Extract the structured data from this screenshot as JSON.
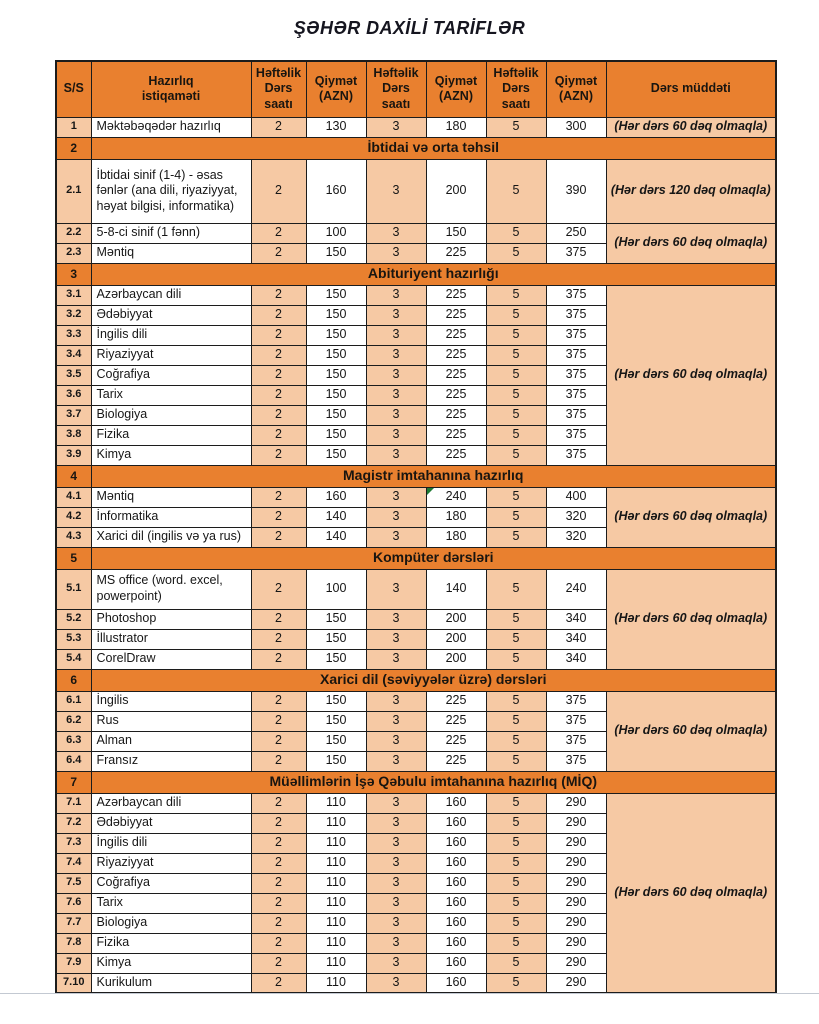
{
  "page": {
    "title": "ŞƏHƏR DAXİLİ TARİFLƏR"
  },
  "colors": {
    "header_orange": "#e9802f",
    "cell_peach": "#f6c9a4",
    "cell_white": "#ffffff",
    "border_black": "#1c1c1c",
    "error_flag_green": "#1e7b34"
  },
  "table": {
    "headers": [
      "S/S",
      "Hazırlıq\nistiqaməti",
      "Həftəlik\nDərs saatı",
      "Qiymət\n(AZN)",
      "Həftəlik\nDərs saatı",
      "Qiymət\n(AZN)",
      "Həftəlik\nDərs saatı",
      "Qiymət\n(AZN)",
      "Dərs müddəti"
    ],
    "rows": [
      {
        "type": "item",
        "num": "1",
        "label": "Məktəbəqədər hazırlıq",
        "values": [
          "2",
          "130",
          "3",
          "180",
          "5",
          "300"
        ],
        "duration": "(Hər dərs 60 dəq olmaqla)",
        "durationSpan": 1
      },
      {
        "type": "section",
        "num": "2",
        "title": "İbtidai və orta təhsil"
      },
      {
        "type": "item",
        "num": "2.1",
        "label": "İbtidai sinif (1-4) - əsas fənlər (ana dili, riyaziyyat, həyat bilgisi, informatika)",
        "values": [
          "2",
          "160",
          "3",
          "200",
          "5",
          "390"
        ],
        "duration": "(Hər dərs 120 dəq olmaqla)",
        "durationSpan": 1,
        "tall": 3
      },
      {
        "type": "item",
        "num": "2.2",
        "label": "5-8-ci sinif (1 fənn)",
        "values": [
          "2",
          "100",
          "3",
          "150",
          "5",
          "250"
        ],
        "duration": "(Hər dərs 60 dəq olmaqla)",
        "durationSpan": 2
      },
      {
        "type": "item",
        "num": "2.3",
        "label": "Məntiq",
        "values": [
          "2",
          "150",
          "3",
          "225",
          "5",
          "375"
        ]
      },
      {
        "type": "section",
        "num": "3",
        "title": "Abituriyent hazırlığı"
      },
      {
        "type": "item",
        "num": "3.1",
        "label": "Azərbaycan dili",
        "values": [
          "2",
          "150",
          "3",
          "225",
          "5",
          "375"
        ],
        "duration": "(Hər dərs 60 dəq olmaqla)",
        "durationSpan": 9
      },
      {
        "type": "item",
        "num": "3.2",
        "label": "Ədəbiyyat",
        "values": [
          "2",
          "150",
          "3",
          "225",
          "5",
          "375"
        ]
      },
      {
        "type": "item",
        "num": "3.3",
        "label": "İngilis dili",
        "values": [
          "2",
          "150",
          "3",
          "225",
          "5",
          "375"
        ]
      },
      {
        "type": "item",
        "num": "3.4",
        "label": "Riyaziyyat",
        "values": [
          "2",
          "150",
          "3",
          "225",
          "5",
          "375"
        ]
      },
      {
        "type": "item",
        "num": "3.5",
        "label": "Coğrafiya",
        "values": [
          "2",
          "150",
          "3",
          "225",
          "5",
          "375"
        ]
      },
      {
        "type": "item",
        "num": "3.6",
        "label": "Tarix",
        "values": [
          "2",
          "150",
          "3",
          "225",
          "5",
          "375"
        ]
      },
      {
        "type": "item",
        "num": "3.7",
        "label": "Biologiya",
        "values": [
          "2",
          "150",
          "3",
          "225",
          "5",
          "375"
        ]
      },
      {
        "type": "item",
        "num": "3.8",
        "label": "Fizika",
        "values": [
          "2",
          "150",
          "3",
          "225",
          "5",
          "375"
        ]
      },
      {
        "type": "item",
        "num": "3.9",
        "label": "Kimya",
        "values": [
          "2",
          "150",
          "3",
          "225",
          "5",
          "375"
        ]
      },
      {
        "type": "section",
        "num": "4",
        "title": "Magistr imtahanına hazırlıq"
      },
      {
        "type": "item",
        "num": "4.1",
        "label": "Məntiq",
        "values": [
          "2",
          "160",
          "3",
          "240",
          "5",
          "400"
        ],
        "duration": "(Hər dərs 60 dəq olmaqla)",
        "durationSpan": 3,
        "flagCell": 3
      },
      {
        "type": "item",
        "num": "4.2",
        "label": "İnformatika",
        "values": [
          "2",
          "140",
          "3",
          "180",
          "5",
          "320"
        ]
      },
      {
        "type": "item",
        "num": "4.3",
        "label": "Xarici dil (ingilis və ya rus)",
        "values": [
          "2",
          "140",
          "3",
          "180",
          "5",
          "320"
        ]
      },
      {
        "type": "section",
        "num": "5",
        "title": "Kompüter dərsləri"
      },
      {
        "type": "item",
        "num": "5.1",
        "label": "MS office (word. excel, powerpoint)",
        "values": [
          "2",
          "100",
          "3",
          "140",
          "5",
          "240"
        ],
        "duration": "(Hər dərs 60 dəq olmaqla)",
        "durationSpan": 4,
        "tall": 2
      },
      {
        "type": "item",
        "num": "5.2",
        "label": "Photoshop",
        "values": [
          "2",
          "150",
          "3",
          "200",
          "5",
          "340"
        ]
      },
      {
        "type": "item",
        "num": "5.3",
        "label": "İllustrator",
        "values": [
          "2",
          "150",
          "3",
          "200",
          "5",
          "340"
        ]
      },
      {
        "type": "item",
        "num": "5.4",
        "label": "CorelDraw",
        "values": [
          "2",
          "150",
          "3",
          "200",
          "5",
          "340"
        ]
      },
      {
        "type": "section",
        "num": "6",
        "title": "Xarici dil (səviyyələr üzrə) dərsləri"
      },
      {
        "type": "item",
        "num": "6.1",
        "label": "İngilis",
        "values": [
          "2",
          "150",
          "3",
          "225",
          "5",
          "375"
        ],
        "duration": "(Hər dərs 60 dəq olmaqla)",
        "durationSpan": 4
      },
      {
        "type": "item",
        "num": "6.2",
        "label": "Rus",
        "values": [
          "2",
          "150",
          "3",
          "225",
          "5",
          "375"
        ]
      },
      {
        "type": "item",
        "num": "6.3",
        "label": "Alman",
        "values": [
          "2",
          "150",
          "3",
          "225",
          "5",
          "375"
        ]
      },
      {
        "type": "item",
        "num": "6.4",
        "label": "Fransız",
        "values": [
          "2",
          "150",
          "3",
          "225",
          "5",
          "375"
        ]
      },
      {
        "type": "section",
        "num": "7",
        "title": "Müəllimlərin İşə Qəbulu imtahanına hazırlıq (MİQ)"
      },
      {
        "type": "item",
        "num": "7.1",
        "label": "Azərbaycan dili",
        "values": [
          "2",
          "110",
          "3",
          "160",
          "5",
          "290"
        ],
        "duration": "(Hər dərs 60 dəq olmaqla)",
        "durationSpan": 10
      },
      {
        "type": "item",
        "num": "7.2",
        "label": "Ədəbiyyat",
        "values": [
          "2",
          "110",
          "3",
          "160",
          "5",
          "290"
        ]
      },
      {
        "type": "item",
        "num": "7.3",
        "label": "İngilis dili",
        "values": [
          "2",
          "110",
          "3",
          "160",
          "5",
          "290"
        ]
      },
      {
        "type": "item",
        "num": "7.4",
        "label": "Riyaziyyat",
        "values": [
          "2",
          "110",
          "3",
          "160",
          "5",
          "290"
        ]
      },
      {
        "type": "item",
        "num": "7.5",
        "label": "Coğrafiya",
        "values": [
          "2",
          "110",
          "3",
          "160",
          "5",
          "290"
        ]
      },
      {
        "type": "item",
        "num": "7.6",
        "label": "Tarix",
        "values": [
          "2",
          "110",
          "3",
          "160",
          "5",
          "290"
        ]
      },
      {
        "type": "item",
        "num": "7.7",
        "label": "Biologiya",
        "values": [
          "2",
          "110",
          "3",
          "160",
          "5",
          "290"
        ]
      },
      {
        "type": "item",
        "num": "7.8",
        "label": "Fizika",
        "values": [
          "2",
          "110",
          "3",
          "160",
          "5",
          "290"
        ]
      },
      {
        "type": "item",
        "num": "7.9",
        "label": "Kimya",
        "values": [
          "2",
          "110",
          "3",
          "160",
          "5",
          "290"
        ]
      },
      {
        "type": "item",
        "num": "7.10",
        "label": "Kurikulum",
        "values": [
          "2",
          "110",
          "3",
          "160",
          "5",
          "290"
        ]
      }
    ]
  }
}
